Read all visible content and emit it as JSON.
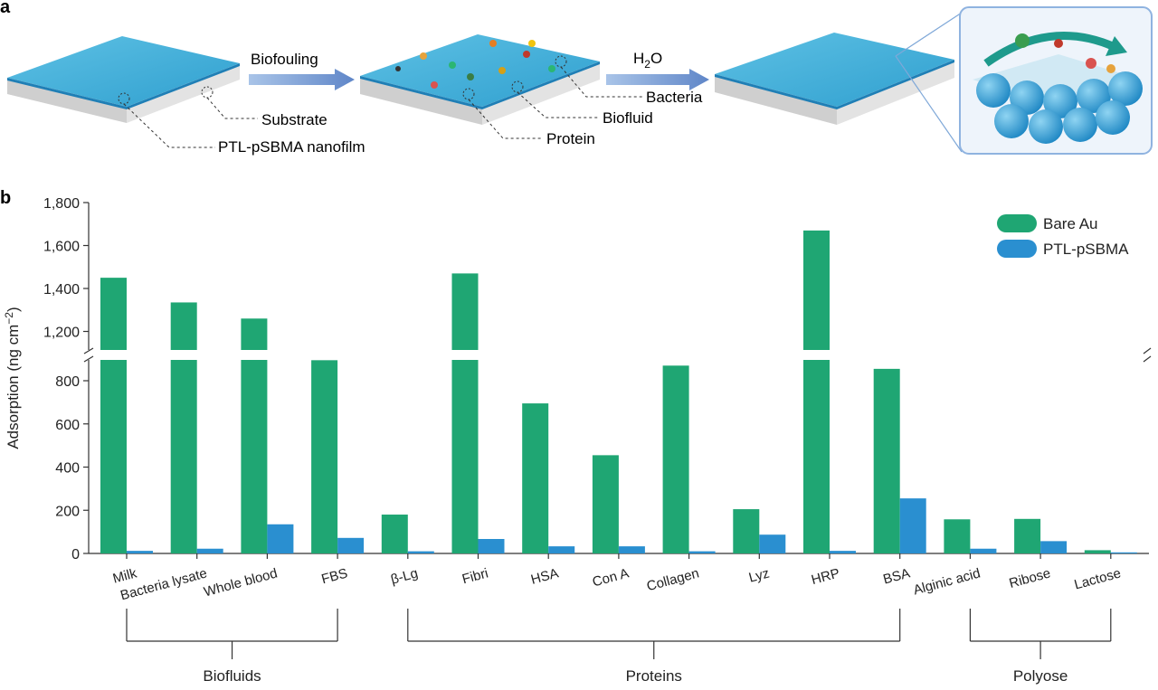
{
  "panel_a": {
    "label": "a",
    "arrow1_label": "Biofouling",
    "arrow2_label_main": "H",
    "arrow2_label_sub": "2",
    "arrow2_label_end": "O",
    "callout_substrate": "Substrate",
    "callout_film": "PTL-pSBMA nanofilm",
    "callout_bacteria": "Bacteria",
    "callout_biofluid": "Biofluid",
    "callout_protein": "Protein"
  },
  "panel_b": {
    "label": "b"
  },
  "colors": {
    "bare_au": "#1fa673",
    "ptl": "#2a8fd0",
    "surface_top": "#4fb3d9",
    "substrate": "#d6d6d6"
  },
  "chart_data": {
    "type": "bar",
    "ylabel": "Adsorption (ng cm−2)",
    "ylabel_main": "Adsorption (ng cm",
    "ylabel_sup": "−2",
    "ylabel_end": ")",
    "ylim_lower": [
      0,
      900
    ],
    "ylim_upper": [
      1100,
      1800
    ],
    "yticks_lower": [
      "0",
      "200",
      "400",
      "600",
      "800"
    ],
    "yticks_upper": [
      "1,200",
      "1,400",
      "1,600",
      "1,800"
    ],
    "ytick_values_lower": [
      0,
      200,
      400,
      600,
      800
    ],
    "ytick_values_upper": [
      1200,
      1400,
      1600,
      1800
    ],
    "categories": [
      "Milk",
      "Bacteria lysate",
      "Whole blood",
      "FBS",
      "β-Lg",
      "Fibri",
      "HSA",
      "Con A",
      "Collagen",
      "Lyz",
      "HRP",
      "BSA",
      "Alginic acid",
      "Ribose",
      "Lactose"
    ],
    "series": [
      {
        "name": "Bare Au",
        "values": [
          1450,
          1335,
          1260,
          895,
          180,
          1470,
          695,
          455,
          870,
          205,
          1670,
          855,
          158,
          160,
          15
        ]
      },
      {
        "name": "PTL-pSBMA",
        "values": [
          12,
          22,
          135,
          72,
          10,
          67,
          33,
          33,
          10,
          87,
          12,
          255,
          22,
          57,
          5
        ]
      }
    ],
    "groups": [
      {
        "label": "Biofluids",
        "from": 0,
        "to": 3
      },
      {
        "label": "Proteins",
        "from": 4,
        "to": 11
      },
      {
        "label": "Polyose",
        "from": 12,
        "to": 14
      }
    ],
    "legend": "top-right"
  }
}
